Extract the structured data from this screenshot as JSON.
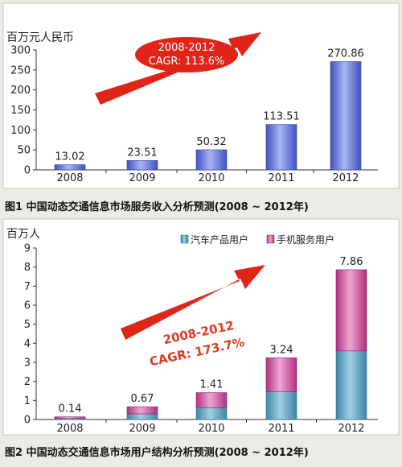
{
  "colors": {
    "background": "#ecece6",
    "panel": "#ffffff",
    "axis": "#333333",
    "bar_blue": "#5a6fd6",
    "bar_blue_light": "#aab4f2",
    "bar_teal": "#5fa6c2",
    "bar_magenta": "#cc4f9c",
    "arrow_red": "#e02418",
    "annotation_red": "#e03a22",
    "caption_text": "#111111"
  },
  "chart_data": [
    {
      "type": "bar",
      "caption": "图1  中国动态交通信息市场服务收入分析预测(2008 ~ 2012年)",
      "ylabel": "百万元人民币",
      "categories": [
        "2008",
        "2009",
        "2010",
        "2011",
        "2012"
      ],
      "series": [
        {
          "values": [
            13.02,
            23.51,
            50.32,
            113.51,
            270.86
          ],
          "color": "#5a6fd6"
        }
      ],
      "data_labels": [
        "13.02",
        "23.51",
        "50.32",
        "113.51",
        "270.86"
      ],
      "ylim": [
        0,
        300
      ],
      "yticks": [
        0,
        50,
        100,
        150,
        200,
        250,
        300
      ],
      "annotation": {
        "line1": "2008-2012",
        "line2": "CAGR: 113.6%",
        "style": "red-ellipse-with-arrow"
      },
      "grid": false
    },
    {
      "type": "bar",
      "stacked": true,
      "caption": "图2  中国动态交通信息市场用户结构分析预测(2008 ~ 2012年)",
      "ylabel": "百万人",
      "categories": [
        "2008",
        "2009",
        "2010",
        "2011",
        "2012"
      ],
      "series": [
        {
          "name": "汽车产品用户",
          "values": [
            0.05,
            0.3,
            0.62,
            1.45,
            3.6
          ],
          "color": "#5fa6c2"
        },
        {
          "name": "手机服务用户",
          "values": [
            0.09,
            0.37,
            0.79,
            1.79,
            4.26
          ],
          "color": "#cc4f9c"
        }
      ],
      "totals": [
        "0.14",
        "0.67",
        "1.41",
        "3.24",
        "7.86"
      ],
      "ylim": [
        0,
        9
      ],
      "yticks": [
        0,
        1,
        2,
        3,
        4,
        5,
        6,
        7,
        8,
        9
      ],
      "legend_position": "top-right",
      "annotation": {
        "line1": "2008-2012",
        "line2": "CAGR: 173.7%",
        "style": "red-text-with-arrow"
      },
      "grid": false
    }
  ]
}
